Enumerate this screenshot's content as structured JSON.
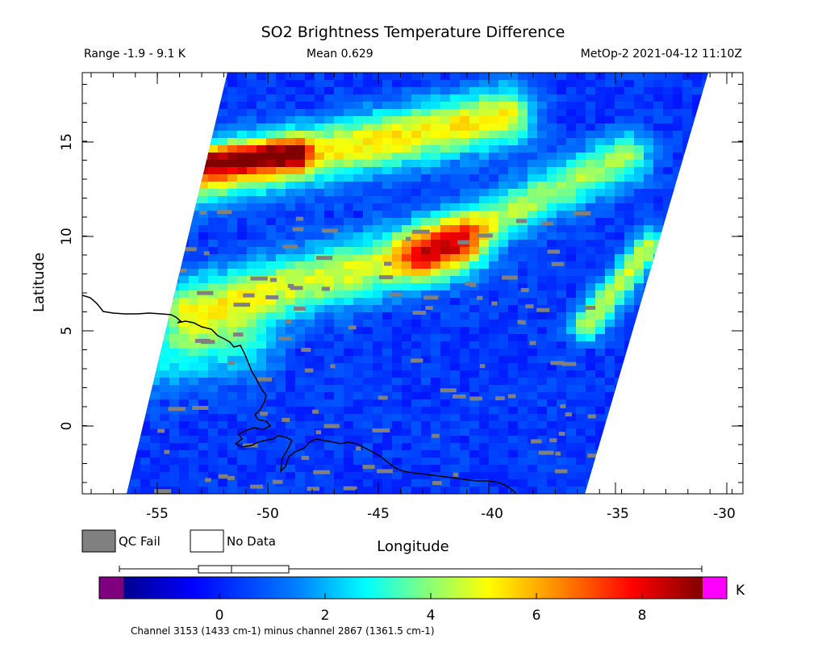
{
  "title": "SO2 Brightness Temperature Difference",
  "range_text": "Range -1.9 - 9.1 K",
  "mean_text": "Mean 0.629",
  "source_text": "MetOp-2 2021-04-12 11:10Z",
  "xlabel": "Longitude",
  "ylabel": "Latitude",
  "x_ticks": [
    "-55",
    "-50",
    "-45",
    "-40",
    "-35",
    "-30"
  ],
  "y_ticks": [
    "0",
    "5",
    "10",
    "15"
  ],
  "legend": {
    "qc_fail": "QC Fail",
    "no_data": "No Data"
  },
  "colorbar": {
    "ticks": [
      "0",
      "2",
      "4",
      "6",
      "8"
    ],
    "unit": "K",
    "caption": "Channel 3153 (1433 cm-1) minus channel 2867 (1361.5 cm-1)",
    "colors": [
      "#7f007f",
      "#00008f",
      "#0000ff",
      "#0080ff",
      "#00ffff",
      "#80ff80",
      "#ffff00",
      "#ff8000",
      "#ff0000",
      "#800000",
      "#ff00ff"
    ],
    "stats": {
      "min": -1.9,
      "q1": -0.4,
      "median": 0.2,
      "q3": 1.3,
      "max": 9.1
    }
  },
  "colors": {
    "qc_fail": "#808080",
    "coast": "#000000",
    "no_data": "#ffffff"
  }
}
